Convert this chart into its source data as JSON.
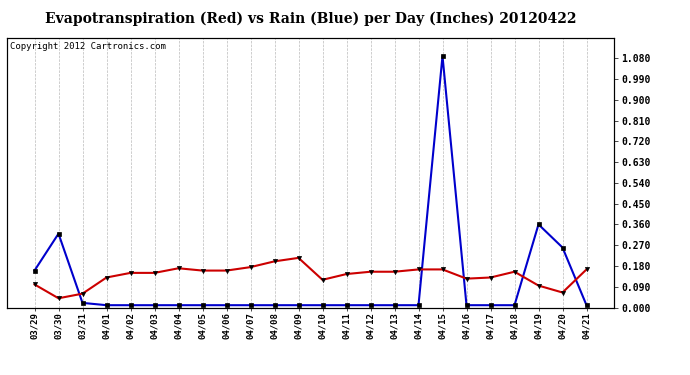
{
  "title": "Evapotranspiration (Red) vs Rain (Blue) per Day (Inches) 20120422",
  "copyright": "Copyright 2012 Cartronics.com",
  "x_labels": [
    "03/29",
    "03/30",
    "03/31",
    "04/01",
    "04/02",
    "04/03",
    "04/04",
    "04/05",
    "04/06",
    "04/07",
    "04/08",
    "04/09",
    "04/10",
    "04/11",
    "04/12",
    "04/13",
    "04/14",
    "04/15",
    "04/16",
    "04/17",
    "04/18",
    "04/19",
    "04/20",
    "04/21"
  ],
  "red_data": [
    0.1,
    0.04,
    0.06,
    0.13,
    0.15,
    0.15,
    0.17,
    0.16,
    0.16,
    0.175,
    0.2,
    0.215,
    0.12,
    0.145,
    0.155,
    0.155,
    0.165,
    0.165,
    0.125,
    0.13,
    0.155,
    0.095,
    0.065,
    0.165
  ],
  "blue_data": [
    0.16,
    0.32,
    0.02,
    0.01,
    0.01,
    0.01,
    0.01,
    0.01,
    0.01,
    0.01,
    0.01,
    0.01,
    0.01,
    0.01,
    0.01,
    0.01,
    0.01,
    1.09,
    0.01,
    0.01,
    0.01,
    0.36,
    0.26,
    0.01
  ],
  "ylim": [
    0.0,
    1.17
  ],
  "yticks": [
    0.0,
    0.09,
    0.18,
    0.27,
    0.36,
    0.45,
    0.54,
    0.63,
    0.72,
    0.81,
    0.9,
    0.99,
    1.08
  ],
  "red_color": "#cc0000",
  "blue_color": "#0000cc",
  "bg_color": "#ffffff",
  "grid_color": "#aaaaaa",
  "title_fontsize": 10,
  "copyright_fontsize": 6.5
}
